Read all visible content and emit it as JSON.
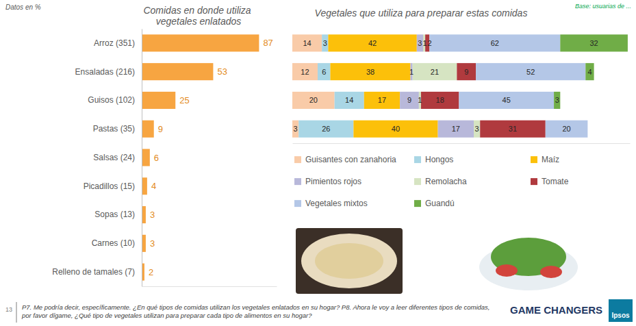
{
  "page": {
    "note": "Datos en %",
    "base": "Base: usuarias de ...",
    "page_number": "13",
    "footnote": "P7. Me podría decir, específicamente. ¿En qué tipos de comidas utilizan los vegetales enlatados en su hogar? P8. Ahora le voy a leer diferentes tipos de comidas, por favor dígame, ¿Qué tipo de vegetales utilizan para preparar cada tipo de alimentos en su hogar?",
    "brand": "GAME CHANGERS",
    "logo": "Ipsos"
  },
  "chart_data": [
    {
      "type": "bar",
      "orientation": "horizontal",
      "title": "Comidas en donde utiliza vegetales enlatados",
      "categories": [
        "Arroz (351)",
        "Ensaladas (216)",
        "Guisos (102)",
        "Pastas (35)",
        "Salsas (24)",
        "Picadillos (15)",
        "Sopas (13)",
        "Carnes (10)",
        "Relleno de tamales (7)"
      ],
      "values": [
        87,
        53,
        25,
        9,
        6,
        4,
        3,
        3,
        2
      ],
      "color": "#f7a541",
      "xlim": [
        0,
        100
      ],
      "data_labels": true,
      "tick_labels": "y"
    },
    {
      "type": "bar",
      "orientation": "horizontal",
      "stacked": true,
      "title": "Vegetales que utiliza para preparar estas comidas",
      "categories": [
        null,
        null,
        null,
        null
      ],
      "series": [
        {
          "name": "Guisantes con zanahoria",
          "color": "#f9cba8",
          "values": [
            14,
            12,
            20,
            3
          ]
        },
        {
          "name": "Hongos",
          "color": "#a9d6e5",
          "values": [
            3,
            6,
            14,
            26
          ]
        },
        {
          "name": "Maíz",
          "color": "#fcc00a",
          "values": [
            42,
            38,
            17,
            40
          ]
        },
        {
          "name": "Pimientos rojos",
          "color": "#b8b8da",
          "values": [
            3,
            1,
            9,
            17
          ]
        },
        {
          "name": "Remolacha",
          "color": "#d6e4c2",
          "values": [
            1,
            21,
            1,
            3
          ]
        },
        {
          "name": "Tomate",
          "color": "#b03a3e",
          "values": [
            2,
            9,
            18,
            31
          ]
        },
        {
          "name": "Vegetales mixtos",
          "color": "#b4c7e7",
          "values": [
            62,
            52,
            45,
            20
          ]
        },
        {
          "name": "Guandú",
          "color": "#70ad47",
          "values": [
            32,
            4,
            3,
            null
          ]
        }
      ],
      "xlim": [
        0,
        160
      ],
      "data_labels": true,
      "tick_labels": false,
      "legend": "bottom"
    }
  ]
}
